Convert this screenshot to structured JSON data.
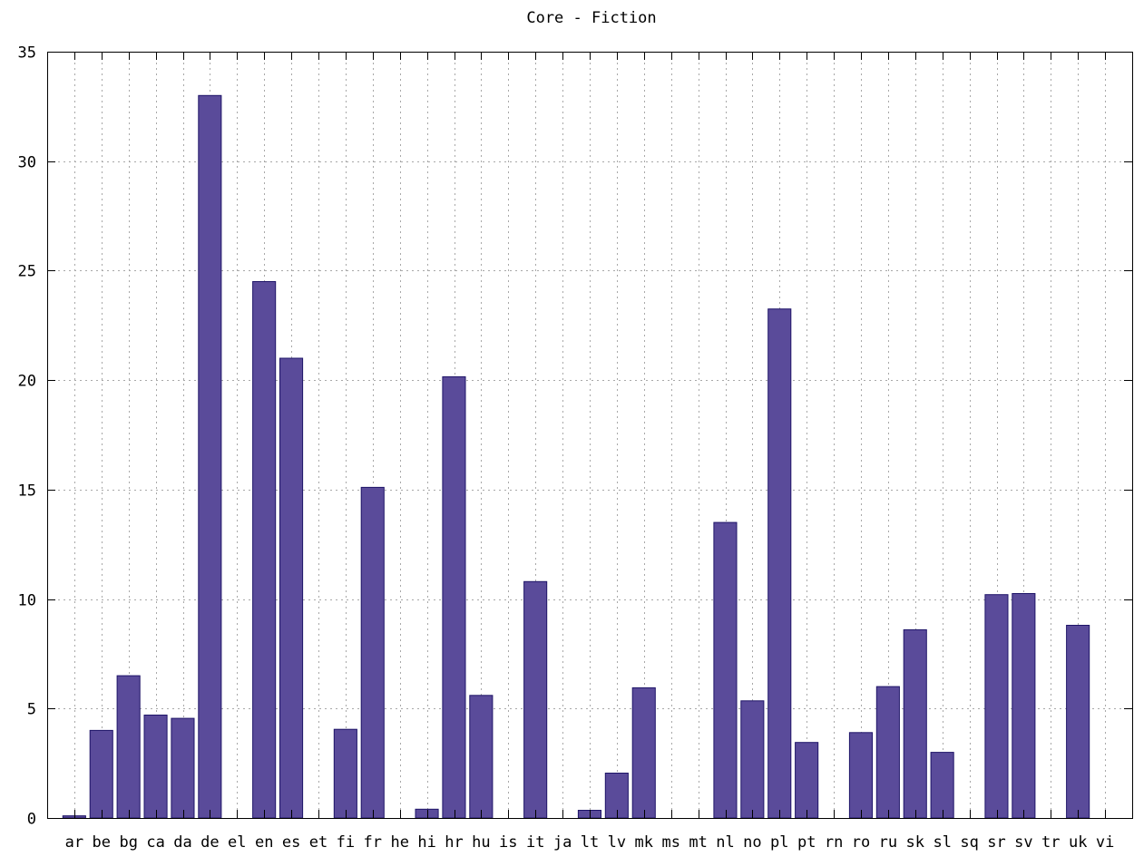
{
  "chart_data": {
    "type": "bar",
    "title": "Core - Fiction",
    "xlabel": "",
    "ylabel": "",
    "ylim": [
      0,
      35
    ],
    "yticks": [
      "0",
      "5",
      "10",
      "15",
      "20",
      "25",
      "30",
      "35"
    ],
    "grid": true,
    "legend": "none",
    "bar_color": "#5a4b9a",
    "bar_edge_color": "#1e1468",
    "categories": [
      "ar",
      "be",
      "bg",
      "ca",
      "da",
      "de",
      "el",
      "en",
      "es",
      "et",
      "fi",
      "fr",
      "he",
      "hi",
      "hr",
      "hu",
      "is",
      "it",
      "ja",
      "lt",
      "lv",
      "mk",
      "ms",
      "mt",
      "nl",
      "no",
      "pl",
      "pt",
      "rn",
      "ro",
      "ru",
      "sk",
      "sl",
      "sq",
      "sr",
      "sv",
      "tr",
      "uk",
      "vi"
    ],
    "values": [
      0.1,
      4.0,
      6.5,
      4.7,
      4.55,
      33.0,
      0,
      24.5,
      21.0,
      0,
      4.05,
      15.1,
      0,
      0.4,
      20.15,
      5.6,
      0,
      10.8,
      0,
      0.35,
      2.05,
      5.95,
      0,
      0,
      13.5,
      5.35,
      23.25,
      3.45,
      0,
      3.9,
      6.0,
      8.6,
      3.0,
      0,
      10.2,
      10.25,
      0,
      8.8,
      0
    ]
  }
}
